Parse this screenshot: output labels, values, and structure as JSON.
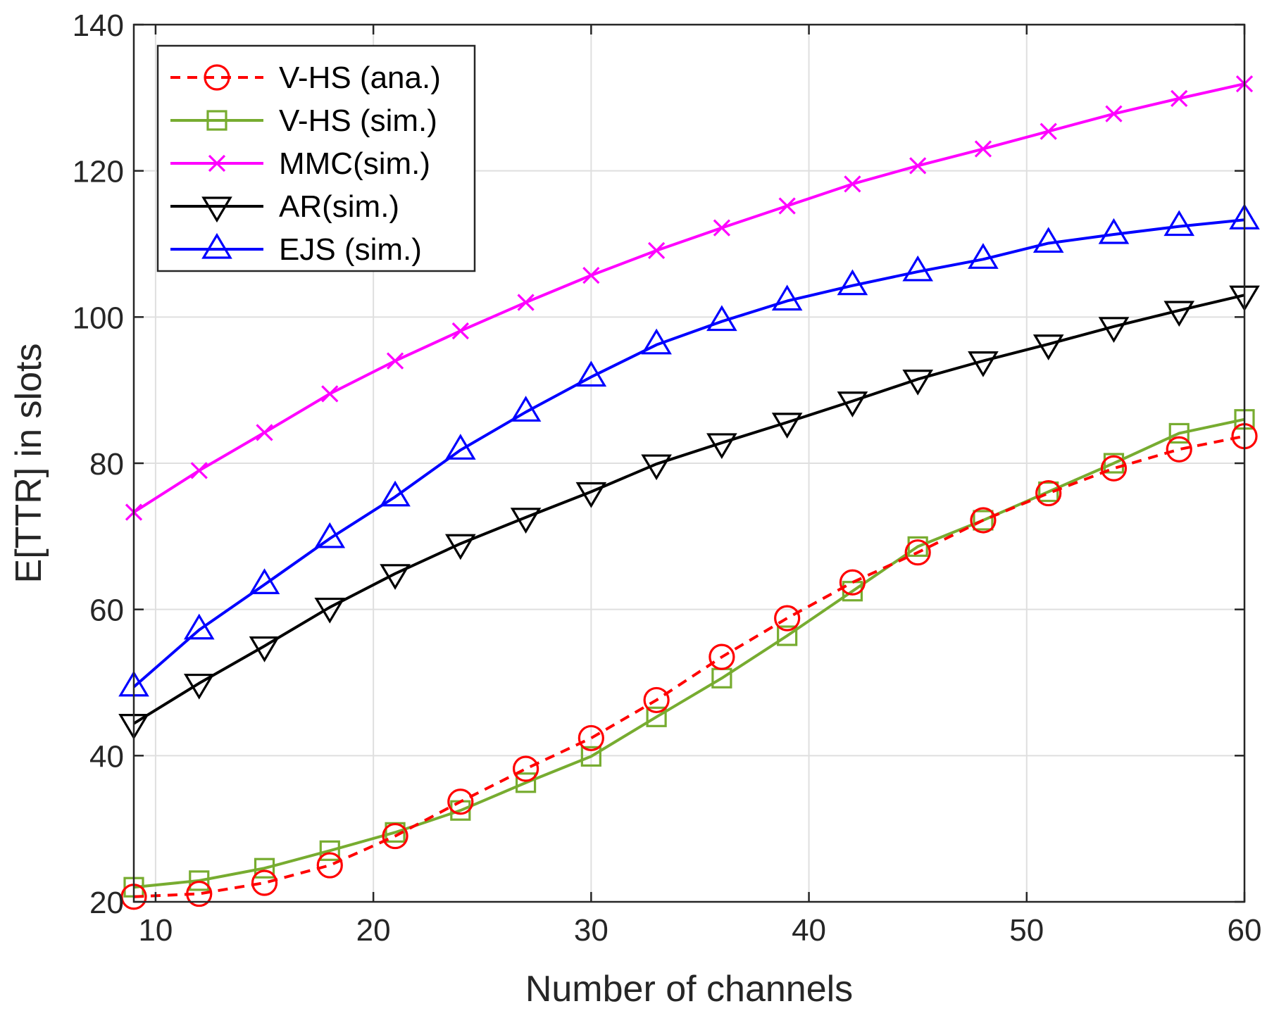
{
  "chart_data": {
    "type": "line",
    "title": "",
    "xlabel": "Number of channels",
    "ylabel": "E[TTR] in slots",
    "xlim": [
      9,
      60
    ],
    "ylim": [
      20,
      140
    ],
    "grid": true,
    "legend_position": "top-left",
    "x": [
      9,
      12,
      15,
      18,
      21,
      24,
      27,
      30,
      33,
      36,
      39,
      42,
      45,
      48,
      51,
      54,
      57,
      60
    ],
    "xticks": [
      10,
      20,
      30,
      40,
      50,
      60
    ],
    "xtick_labels": [
      "10",
      "20",
      "30",
      "40",
      "50",
      "60"
    ],
    "yticks": [
      20,
      40,
      60,
      80,
      100,
      120,
      140
    ],
    "ytick_labels": [
      "20",
      "40",
      "60",
      "80",
      "100",
      "120",
      "140"
    ],
    "series": [
      {
        "name": "V-HS (ana.)",
        "color": "#ff0000",
        "line_style": "dashed",
        "marker": "circle",
        "values": [
          20.7,
          21.1,
          22.6,
          25.0,
          29.0,
          33.7,
          38.2,
          42.4,
          47.6,
          53.5,
          58.8,
          63.7,
          67.8,
          72.2,
          75.9,
          79.3,
          81.9,
          83.7
        ]
      },
      {
        "name": "V-HS (sim.)",
        "color": "#77ac30",
        "line_style": "solid",
        "marker": "square",
        "values": [
          22.0,
          22.9,
          24.6,
          27.0,
          29.5,
          32.5,
          36.3,
          39.9,
          45.3,
          50.6,
          56.4,
          62.5,
          68.6,
          72.2,
          76.1,
          80.0,
          84.1,
          86.0
        ]
      },
      {
        "name": "MMC(sim.)",
        "color": "#ff00ff",
        "line_style": "solid",
        "marker": "x",
        "values": [
          73.3,
          79.0,
          84.2,
          89.5,
          94.0,
          98.1,
          102.0,
          105.7,
          109.1,
          112.2,
          115.2,
          118.2,
          120.7,
          123.0,
          125.4,
          127.8,
          129.9,
          131.9
        ]
      },
      {
        "name": "AR(sim.)",
        "color": "#000000",
        "line_style": "solid",
        "marker": "triangle-down",
        "values": [
          44.4,
          49.9,
          55.0,
          60.3,
          64.9,
          69.0,
          72.6,
          76.1,
          79.9,
          82.8,
          85.6,
          88.5,
          91.5,
          94.0,
          96.3,
          98.7,
          100.9,
          103.0
        ]
      },
      {
        "name": "EJS (sim.)",
        "color": "#0000ff",
        "line_style": "solid",
        "marker": "triangle-up",
        "values": [
          49.4,
          57.2,
          63.4,
          69.7,
          75.4,
          81.8,
          87.0,
          91.8,
          96.2,
          99.4,
          102.2,
          104.3,
          106.2,
          107.9,
          110.1,
          111.3,
          112.4,
          113.3
        ]
      }
    ]
  }
}
